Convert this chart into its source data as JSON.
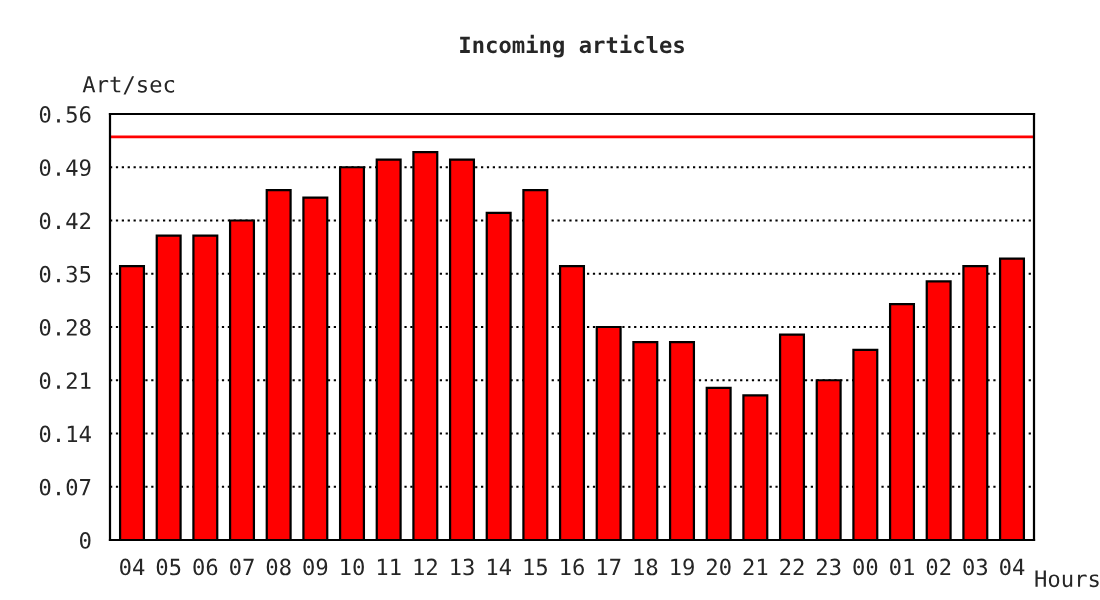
{
  "chart_data": {
    "type": "bar",
    "title": "Incoming articles",
    "ylabel": "Art/sec",
    "xlabel": "Hours",
    "categories": [
      "04",
      "05",
      "06",
      "07",
      "08",
      "09",
      "10",
      "11",
      "12",
      "13",
      "14",
      "15",
      "16",
      "17",
      "18",
      "19",
      "20",
      "21",
      "22",
      "23",
      "00",
      "01",
      "02",
      "03",
      "04"
    ],
    "values": [
      0.36,
      0.4,
      0.4,
      0.42,
      0.46,
      0.45,
      0.49,
      0.5,
      0.51,
      0.5,
      0.43,
      0.46,
      0.36,
      0.28,
      0.26,
      0.26,
      0.2,
      0.19,
      0.27,
      0.21,
      0.25,
      0.31,
      0.34,
      0.36,
      0.37
    ],
    "color": "#ff0000",
    "ylim": [
      0,
      0.56
    ],
    "yticks": [
      {
        "value": 0,
        "label": "0"
      },
      0.07,
      0.14,
      0.21,
      0.28,
      0.35,
      0.42,
      0.49,
      0.56
    ],
    "grid": "y",
    "line_style": "dotted",
    "ref_lines": [
      {
        "axis": "y",
        "value": 0.53,
        "color": "#ff0000"
      }
    ]
  }
}
